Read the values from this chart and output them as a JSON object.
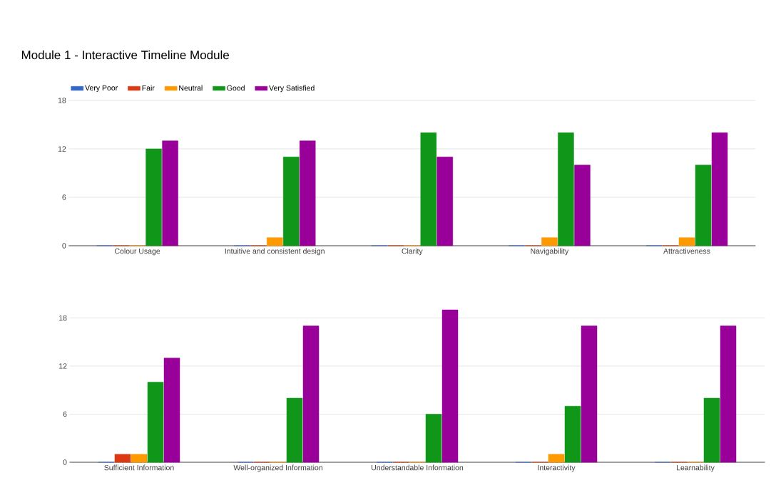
{
  "chart_data": [
    {
      "type": "bar",
      "title": "Module 1 - Interactive Timeline Module",
      "categories": [
        "Colour Usage",
        "Intuitive and consistent design",
        "Clarity",
        "Navigability",
        "Attractiveness"
      ],
      "series": [
        {
          "name": "Very Poor",
          "color": "#3366cc",
          "values": [
            0,
            0,
            0,
            0,
            0
          ]
        },
        {
          "name": "Fair",
          "color": "#dc3912",
          "values": [
            0,
            0,
            0,
            0,
            0
          ]
        },
        {
          "name": "Neutral",
          "color": "#ff9900",
          "values": [
            0,
            1,
            0,
            1,
            1
          ]
        },
        {
          "name": "Good",
          "color": "#109618",
          "values": [
            12,
            11,
            14,
            14,
            10
          ]
        },
        {
          "name": "Very Satisfied",
          "color": "#990099",
          "values": [
            13,
            13,
            11,
            10,
            14
          ]
        }
      ],
      "ylim": [
        0,
        18
      ],
      "yticks": [
        0,
        6,
        12,
        18
      ],
      "grid": "y",
      "legend": "top left"
    },
    {
      "type": "bar",
      "categories": [
        "Sufficient Information",
        "Well-organized Information",
        "Understandable Information",
        "Interactivity",
        "Learnability"
      ],
      "series": [
        {
          "color": "#3366cc",
          "values": [
            0,
            0,
            0,
            0,
            0
          ]
        },
        {
          "color": "#dc3912",
          "values": [
            1,
            0,
            0,
            0,
            0
          ]
        },
        {
          "color": "#ff9900",
          "values": [
            1,
            0,
            0,
            1,
            0
          ]
        },
        {
          "color": "#109618",
          "values": [
            10,
            8,
            6,
            7,
            8
          ]
        },
        {
          "color": "#990099",
          "values": [
            13,
            17,
            19,
            17,
            17
          ]
        }
      ],
      "ylim": [
        0,
        19
      ],
      "yticks": [
        0,
        6,
        12,
        18
      ],
      "grid": "y"
    }
  ]
}
